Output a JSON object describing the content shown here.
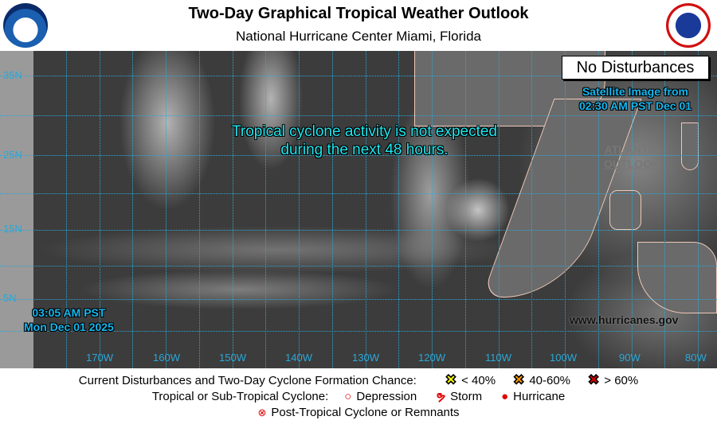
{
  "header": {
    "title": "Two-Day Graphical Tropical Weather Outlook",
    "subtitle": "National Hurricane Center  Miami, Florida",
    "left_logo": "NOAA",
    "right_logo": "NATIONAL WEATHER SERVICE"
  },
  "map": {
    "status_box": "No Disturbances",
    "satellite_line1": "Satellite Image from",
    "satellite_line2": "02:30 AM PST Dec 01",
    "message_line1": "Tropical cyclone activity is not expected",
    "message_line2": "during the next 48 hours.",
    "atlantic_line1": "ATLANTIC",
    "atlantic_line2": "OUTLOOK",
    "time_line1": "03:05 AM PST",
    "time_line2": "Mon Dec 01 2025",
    "website": "www.hurricanes.gov",
    "lat_labels": [
      "35N",
      "25N",
      "15N",
      "5N"
    ],
    "lon_labels": [
      "170W",
      "160W",
      "150W",
      "140W",
      "130W",
      "120W",
      "110W",
      "100W",
      "90W",
      "80W"
    ]
  },
  "legend": {
    "row1_label": "Current Disturbances and Two-Day Cyclone Formation Chance:",
    "low": "< 40%",
    "medium": "40-60%",
    "high": "> 60%",
    "row2_label": "Tropical or Sub-Tropical Cyclone:",
    "depression": "Depression",
    "storm": "Storm",
    "hurricane": "Hurricane",
    "post_tropical": "Post-Tropical Cyclone or Remnants",
    "colors": {
      "low": "#ffff00",
      "medium": "#ff9900",
      "high": "#dd0000",
      "cyclone": "#e00000"
    }
  }
}
